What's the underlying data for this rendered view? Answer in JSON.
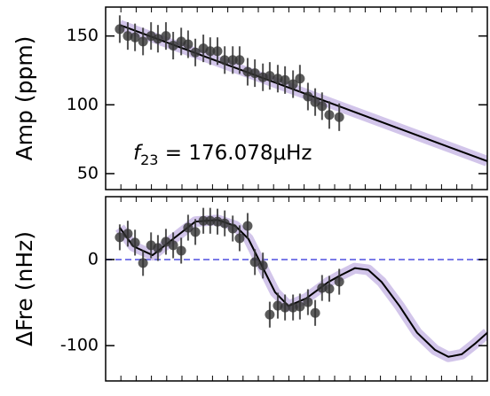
{
  "chart_data": [
    {
      "type": "errorbar",
      "ylabel": "Amp (ppm)",
      "annotation": {
        "symbol": "f",
        "subscript": "23",
        "text": " = 176.078μHz"
      },
      "x": [
        3.7,
        5.8,
        7.7,
        9.8,
        11.9,
        13.7,
        15.8,
        17.7,
        19.8,
        21.6,
        23.5,
        25.6,
        27.4,
        29.3,
        31.2,
        33.3,
        35.1,
        37.2,
        39.1,
        41.2,
        43.0,
        45.1,
        47.0,
        49.1,
        50.9,
        53.0,
        54.9,
        56.7,
        58.6,
        61.2
      ],
      "values": [
        155,
        150,
        149,
        146,
        150,
        148,
        150,
        143,
        146,
        144,
        138,
        141,
        139,
        139,
        132.5,
        132.5,
        132.5,
        124,
        123,
        120,
        121,
        119,
        118,
        115,
        119,
        106,
        102,
        99,
        92.6,
        91
      ],
      "errors": [
        10,
        10,
        10,
        10,
        10,
        10,
        10,
        10,
        10,
        10,
        10,
        10,
        10,
        10,
        10,
        10,
        10,
        10,
        10,
        10,
        10,
        10,
        10,
        10,
        10,
        10,
        10,
        10,
        10,
        10
      ],
      "color": "#333333",
      "fit": {
        "x": [
          3.7,
          100
        ],
        "values": [
          158,
          59
        ],
        "color": "#000000",
        "band_color": "#9b7fd0"
      },
      "xlim": [
        0,
        100
      ],
      "ylim": [
        38.4,
        171
      ],
      "yticks": [
        50,
        100,
        150
      ],
      "xticks": [
        4,
        8,
        12,
        16,
        20,
        24,
        28,
        32,
        36,
        40,
        44,
        48,
        52,
        56,
        60,
        64,
        68,
        72,
        76,
        80,
        84,
        88,
        92,
        96
      ]
    },
    {
      "type": "errorbar",
      "ylabel": "ΔFre (nHz)",
      "x": [
        3.7,
        5.8,
        7.7,
        9.8,
        11.9,
        13.7,
        15.8,
        17.7,
        19.8,
        21.6,
        23.5,
        25.6,
        27.4,
        29.3,
        31.2,
        33.3,
        35.1,
        37.2,
        39.1,
        41.2,
        43.0,
        45.1,
        47.0,
        49.1,
        50.9,
        53.0,
        54.9,
        56.7,
        58.6,
        61.2
      ],
      "values": [
        25.8,
        30,
        19.6,
        -4,
        16.5,
        13.4,
        20.6,
        16.5,
        10.3,
        37,
        32,
        45,
        45,
        44,
        42,
        36,
        24.7,
        39,
        -3,
        -7,
        -64,
        -53.6,
        -55.7,
        -55.7,
        -54.6,
        -49.5,
        -62,
        -33,
        -34,
        -25.8
      ],
      "errors": [
        15,
        15,
        15,
        15,
        15,
        15,
        15,
        15,
        15,
        15,
        15,
        15,
        15,
        15,
        15,
        15,
        15,
        15,
        15,
        15,
        15,
        15,
        15,
        15,
        15,
        15,
        15,
        15,
        15,
        15
      ],
      "color": "#333333",
      "fit": {
        "x": [
          3.7,
          7.2,
          12.3,
          17.7,
          23.5,
          29.3,
          34,
          37.4,
          40.9,
          44.4,
          47.9,
          52.6,
          58.4,
          61.9,
          65.3,
          68.8,
          72.3,
          77,
          81.6,
          86.3,
          89.8,
          93.3,
          96.7,
          100
        ],
        "values": [
          37,
          15.5,
          5,
          24,
          44,
          46,
          39,
          24,
          -7,
          -38,
          -54,
          -45,
          -26,
          -17.5,
          -10,
          -12,
          -26,
          -54,
          -85,
          -105,
          -113,
          -110,
          -98,
          -85
        ],
        "color": "#000000",
        "band_color": "#9b7fd0"
      },
      "hline": {
        "value": 0,
        "color": "#7b7be8"
      },
      "xlim": [
        0,
        100
      ],
      "ylim": [
        -141,
        73
      ],
      "yticks": [
        -100,
        0
      ],
      "xticks": [
        4,
        8,
        12,
        16,
        20,
        24,
        28,
        32,
        36,
        40,
        44,
        48,
        52,
        56,
        60,
        64,
        68,
        72,
        76,
        80,
        84,
        88,
        92,
        96
      ]
    }
  ]
}
